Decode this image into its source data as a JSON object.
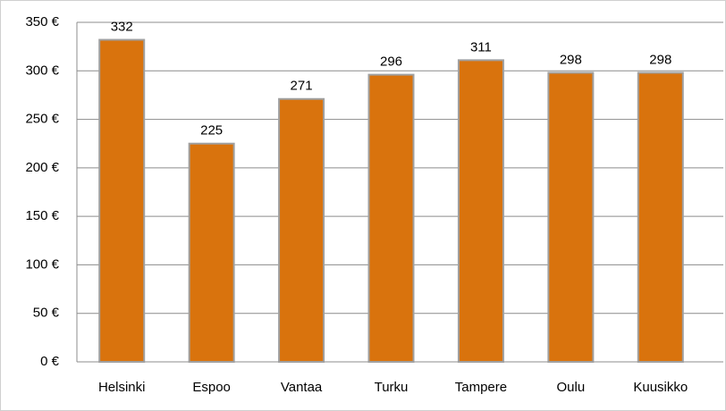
{
  "chart_data": {
    "type": "bar",
    "categories": [
      "Helsinki",
      "Espoo",
      "Vantaa",
      "Turku",
      "Tampere",
      "Oulu",
      "Kuusikko"
    ],
    "values": [
      332,
      225,
      271,
      296,
      311,
      298,
      298
    ],
    "color": "#d9730d",
    "ylim": [
      0,
      350
    ],
    "yticks": [
      {
        "value": 0,
        "label": "0 €"
      },
      {
        "value": 50,
        "label": "50 €"
      },
      {
        "value": 100,
        "label": "100 €"
      },
      {
        "value": 150,
        "label": "150 €"
      },
      {
        "value": 200,
        "label": "200 €"
      },
      {
        "value": 250,
        "label": "250 €"
      },
      {
        "value": 300,
        "label": "300 €"
      },
      {
        "value": 350,
        "label": "350 €"
      }
    ],
    "grid": true
  }
}
